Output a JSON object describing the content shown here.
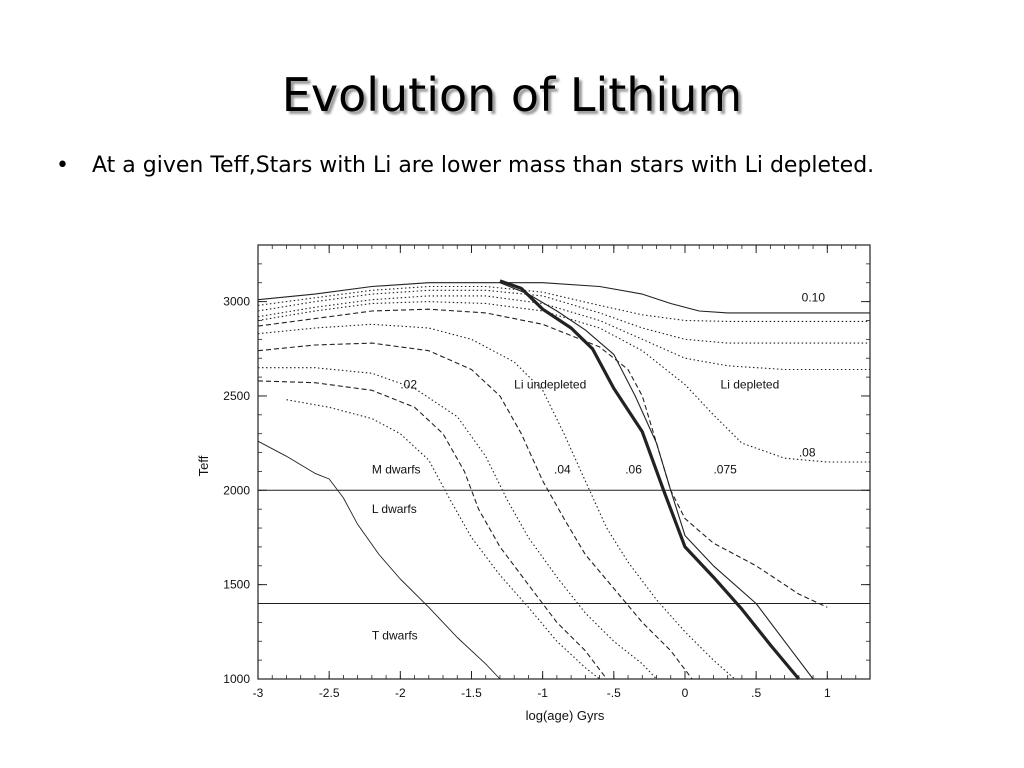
{
  "slide": {
    "title": "Evolution of Lithium",
    "bullet": "At a given Teff,Stars with Li are lower mass than stars with Li depleted."
  },
  "chart_data": {
    "type": "line",
    "xlabel": "log(age) Gyrs",
    "ylabel": "Teff",
    "xlim": [
      -3,
      1.3
    ],
    "ylim": [
      1000,
      3300
    ],
    "x_ticks": [
      -3,
      -2.5,
      -2,
      -1.5,
      -1,
      -0.5,
      0,
      0.5,
      1
    ],
    "x_tick_labels": [
      "-3",
      "-2.5",
      "-2",
      "-1.5",
      "-1",
      "-.5",
      "0",
      ".5",
      "1"
    ],
    "y_ticks": [
      1000,
      1500,
      2000,
      2500,
      3000
    ],
    "y_tick_labels": [
      "1000",
      "1500",
      "2000",
      "2500",
      "3000"
    ],
    "hlines": [
      2000,
      1400
    ],
    "region_labels": [
      {
        "text": "M dwarfs",
        "x": -2.2,
        "y": 2090
      },
      {
        "text": "L dwarfs",
        "x": -2.2,
        "y": 1880
      },
      {
        "text": "T dwarfs",
        "x": -2.2,
        "y": 1210
      }
    ],
    "annotations": [
      {
        "text": "0.10",
        "x": 0.82,
        "y": 3000
      },
      {
        "text": ".02",
        "x": -2.0,
        "y": 2540
      },
      {
        "text": "Li undepleted",
        "x": -1.2,
        "y": 2540
      },
      {
        "text": "Li depleted",
        "x": 0.25,
        "y": 2540
      },
      {
        "text": ".08",
        "x": 0.8,
        "y": 2180
      },
      {
        "text": ".04",
        "x": -0.92,
        "y": 2090
      },
      {
        "text": ".06",
        "x": -0.42,
        "y": 2090
      },
      {
        "text": ".075",
        "x": 0.2,
        "y": 2090
      }
    ],
    "series": [
      {
        "style": "solid",
        "points": [
          [
            -3,
            3010
          ],
          [
            -2.6,
            3040
          ],
          [
            -2.2,
            3080
          ],
          [
            -1.8,
            3100
          ],
          [
            -1.4,
            3100
          ],
          [
            -1.0,
            3100
          ],
          [
            -0.6,
            3080
          ],
          [
            -0.3,
            3040
          ],
          [
            -0.1,
            2990
          ],
          [
            0.1,
            2950
          ],
          [
            0.3,
            2940
          ],
          [
            0.6,
            2940
          ],
          [
            1.3,
            2940
          ]
        ]
      },
      {
        "style": "dotted",
        "points": [
          [
            -3,
            2980
          ],
          [
            -2.6,
            3020
          ],
          [
            -2.2,
            3060
          ],
          [
            -1.8,
            3080
          ],
          [
            -1.4,
            3080
          ],
          [
            -1.0,
            3050
          ],
          [
            -0.6,
            2980
          ],
          [
            -0.3,
            2930
          ],
          [
            0.0,
            2900
          ],
          [
            0.3,
            2895
          ],
          [
            0.7,
            2895
          ],
          [
            1.3,
            2895
          ]
        ]
      },
      {
        "style": "dotted",
        "points": [
          [
            -3,
            2950
          ],
          [
            -2.6,
            3000
          ],
          [
            -2.2,
            3040
          ],
          [
            -1.8,
            3060
          ],
          [
            -1.4,
            3060
          ],
          [
            -1.0,
            3030
          ],
          [
            -0.6,
            2940
          ],
          [
            -0.3,
            2860
          ],
          [
            0.0,
            2800
          ],
          [
            0.3,
            2780
          ],
          [
            0.7,
            2780
          ],
          [
            1.3,
            2780
          ]
        ]
      },
      {
        "style": "dotted",
        "points": [
          [
            -3,
            2920
          ],
          [
            -2.6,
            2970
          ],
          [
            -2.2,
            3010
          ],
          [
            -1.8,
            3030
          ],
          [
            -1.4,
            3030
          ],
          [
            -1.0,
            2990
          ],
          [
            -0.6,
            2900
          ],
          [
            -0.3,
            2800
          ],
          [
            0.0,
            2700
          ],
          [
            0.3,
            2660
          ],
          [
            0.7,
            2640
          ],
          [
            1.3,
            2640
          ]
        ]
      },
      {
        "style": "dotted",
        "points": [
          [
            -3,
            2900
          ],
          [
            -2.6,
            2950
          ],
          [
            -2.2,
            2990
          ],
          [
            -1.8,
            3000
          ],
          [
            -1.4,
            2990
          ],
          [
            -1.0,
            2950
          ],
          [
            -0.6,
            2860
          ],
          [
            -0.3,
            2740
          ],
          [
            0.0,
            2560
          ],
          [
            0.2,
            2400
          ],
          [
            0.4,
            2250
          ],
          [
            0.7,
            2170
          ],
          [
            1.0,
            2150
          ],
          [
            1.3,
            2150
          ]
        ]
      },
      {
        "style": "dashed",
        "points": [
          [
            -3,
            2870
          ],
          [
            -2.6,
            2910
          ],
          [
            -2.2,
            2950
          ],
          [
            -1.8,
            2960
          ],
          [
            -1.4,
            2940
          ],
          [
            -1.0,
            2880
          ],
          [
            -0.6,
            2760
          ],
          [
            -0.4,
            2640
          ],
          [
            -0.3,
            2500
          ],
          [
            -0.2,
            2250
          ],
          [
            -0.1,
            2000
          ],
          [
            0.0,
            1850
          ],
          [
            0.2,
            1720
          ],
          [
            0.5,
            1600
          ],
          [
            0.8,
            1450
          ],
          [
            1.0,
            1380
          ]
        ]
      },
      {
        "style": "solid",
        "points": [
          [
            -1.3,
            3100
          ],
          [
            -1.1,
            3040
          ],
          [
            -0.9,
            2950
          ],
          [
            -0.7,
            2850
          ],
          [
            -0.5,
            2720
          ],
          [
            -0.35,
            2500
          ],
          [
            -0.2,
            2250
          ],
          [
            -0.1,
            2000
          ],
          [
            0.0,
            1760
          ],
          [
            0.2,
            1600
          ],
          [
            0.5,
            1400
          ],
          [
            0.75,
            1150
          ],
          [
            0.9,
            1000
          ]
        ]
      },
      {
        "style": "solid",
        "thick": true,
        "points": [
          [
            -1.3,
            3110
          ],
          [
            -1.15,
            3070
          ],
          [
            -1.0,
            2960
          ],
          [
            -0.8,
            2860
          ],
          [
            -0.65,
            2750
          ],
          [
            -0.5,
            2540
          ],
          [
            -0.3,
            2310
          ],
          [
            -0.15,
            2000
          ],
          [
            0.0,
            1700
          ],
          [
            0.2,
            1540
          ],
          [
            0.4,
            1370
          ],
          [
            0.6,
            1180
          ],
          [
            0.8,
            1000
          ]
        ]
      },
      {
        "style": "dotted",
        "points": [
          [
            -3,
            2830
          ],
          [
            -2.6,
            2860
          ],
          [
            -2.2,
            2880
          ],
          [
            -1.8,
            2860
          ],
          [
            -1.5,
            2800
          ],
          [
            -1.2,
            2680
          ],
          [
            -1.0,
            2530
          ],
          [
            -0.85,
            2300
          ],
          [
            -0.7,
            2050
          ],
          [
            -0.55,
            1800
          ],
          [
            -0.4,
            1620
          ],
          [
            -0.2,
            1420
          ],
          [
            0.0,
            1250
          ],
          [
            0.2,
            1100
          ],
          [
            0.35,
            1000
          ]
        ]
      },
      {
        "style": "dashed",
        "points": [
          [
            -3,
            2740
          ],
          [
            -2.6,
            2770
          ],
          [
            -2.2,
            2780
          ],
          [
            -1.8,
            2740
          ],
          [
            -1.5,
            2640
          ],
          [
            -1.3,
            2500
          ],
          [
            -1.15,
            2300
          ],
          [
            -1.0,
            2050
          ],
          [
            -0.85,
            1850
          ],
          [
            -0.7,
            1660
          ],
          [
            -0.5,
            1480
          ],
          [
            -0.3,
            1300
          ],
          [
            -0.1,
            1150
          ],
          [
            0.05,
            1000
          ]
        ]
      },
      {
        "style": "dotted",
        "points": [
          [
            -3,
            2650
          ],
          [
            -2.6,
            2650
          ],
          [
            -2.2,
            2620
          ],
          [
            -1.9,
            2540
          ],
          [
            -1.6,
            2390
          ],
          [
            -1.4,
            2180
          ],
          [
            -1.25,
            1950
          ],
          [
            -1.1,
            1750
          ],
          [
            -0.9,
            1540
          ],
          [
            -0.7,
            1350
          ],
          [
            -0.5,
            1200
          ],
          [
            -0.3,
            1080
          ],
          [
            -0.2,
            1000
          ]
        ]
      },
      {
        "style": "dashed",
        "points": [
          [
            -3,
            2580
          ],
          [
            -2.6,
            2570
          ],
          [
            -2.2,
            2530
          ],
          [
            -1.9,
            2440
          ],
          [
            -1.7,
            2300
          ],
          [
            -1.55,
            2100
          ],
          [
            -1.45,
            1900
          ],
          [
            -1.3,
            1700
          ],
          [
            -1.1,
            1500
          ],
          [
            -0.9,
            1300
          ],
          [
            -0.7,
            1150
          ],
          [
            -0.55,
            1000
          ]
        ]
      },
      {
        "style": "dotted",
        "points": [
          [
            -2.8,
            2480
          ],
          [
            -2.5,
            2440
          ],
          [
            -2.2,
            2380
          ],
          [
            -2.0,
            2300
          ],
          [
            -1.8,
            2160
          ],
          [
            -1.65,
            1950
          ],
          [
            -1.5,
            1750
          ],
          [
            -1.3,
            1550
          ],
          [
            -1.1,
            1380
          ],
          [
            -0.9,
            1200
          ],
          [
            -0.7,
            1060
          ],
          [
            -0.6,
            1000
          ]
        ]
      },
      {
        "style": "solid",
        "thin": true,
        "points": [
          [
            -3,
            2260
          ],
          [
            -2.8,
            2180
          ],
          [
            -2.6,
            2090
          ],
          [
            -2.5,
            2060
          ],
          [
            -2.4,
            1960
          ],
          [
            -2.3,
            1820
          ],
          [
            -2.15,
            1660
          ],
          [
            -2.0,
            1530
          ],
          [
            -1.8,
            1380
          ],
          [
            -1.6,
            1220
          ],
          [
            -1.4,
            1080
          ],
          [
            -1.3,
            1000
          ]
        ]
      }
    ]
  }
}
